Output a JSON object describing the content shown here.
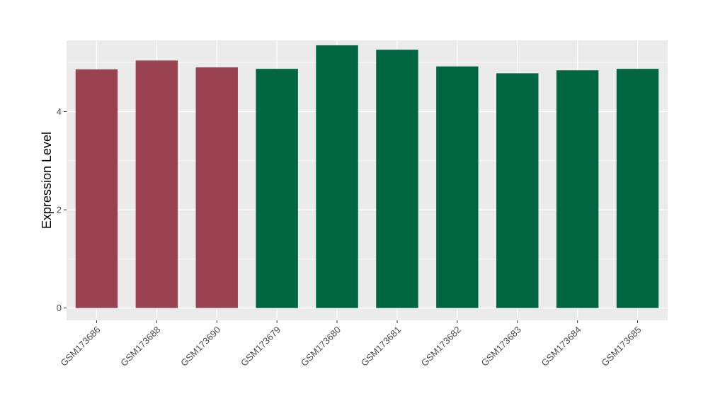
{
  "chart_data": {
    "type": "bar",
    "title": "",
    "xlabel": "",
    "ylabel": "Expression Level",
    "categories": [
      "GSM173686",
      "GSM173688",
      "GSM173690",
      "GSM173679",
      "GSM173680",
      "GSM173681",
      "GSM173682",
      "GSM173683",
      "GSM173684",
      "GSM173685"
    ],
    "values": [
      4.86,
      5.04,
      4.9,
      4.87,
      5.35,
      5.26,
      4.92,
      4.78,
      4.84,
      4.87
    ],
    "bar_colors": [
      "#9a4350",
      "#9a4350",
      "#9a4350",
      "#006642",
      "#006642",
      "#006642",
      "#006642",
      "#006642",
      "#006642",
      "#006642"
    ],
    "ylim": [
      -0.25,
      5.45
    ],
    "yticks": [
      0,
      2,
      4
    ],
    "ytick_labels": [
      "0",
      "2",
      "4"
    ],
    "grid": true,
    "legend": "none",
    "panel_background": "#ebebeb",
    "grid_color": "#ffffff"
  }
}
